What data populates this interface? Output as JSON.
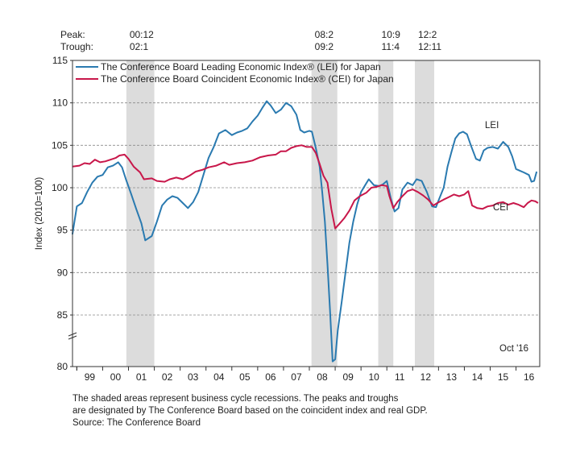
{
  "header": {
    "peak_label": "Peak:",
    "trough_label": "Trough:",
    "cycles": [
      {
        "peak": "00:12",
        "trough": "02:1",
        "start": 2000.917,
        "end": 2002.0
      },
      {
        "peak": "08:2",
        "trough": "09:2",
        "start": 2008.083,
        "end": 2009.083
      },
      {
        "peak": "10:9",
        "trough": "11:4",
        "start": 2010.667,
        "end": 2011.25
      },
      {
        "peak": "12:2",
        "trough": "12:11",
        "start": 2012.083,
        "end": 2012.833
      }
    ]
  },
  "chart_data": {
    "type": "line",
    "ylabel": "Index (2010=100)",
    "ylim": [
      80,
      115
    ],
    "y_ticks": [
      80,
      85,
      90,
      95,
      100,
      105,
      110,
      115
    ],
    "xlim": [
      1998.833,
      2016.917
    ],
    "x_tick_labels": [
      "99",
      "00",
      "01",
      "02",
      "03",
      "04",
      "05",
      "06",
      "07",
      "08",
      "09",
      "10",
      "11",
      "12",
      "13",
      "14",
      "15",
      "16"
    ],
    "x_tick_years": [
      1999,
      2000,
      2001,
      2002,
      2003,
      2004,
      2005,
      2006,
      2007,
      2008,
      2009,
      2010,
      2011,
      2012,
      2013,
      2014,
      2015,
      2016
    ],
    "y_axis_break": true,
    "grid": "horizontal dashed",
    "legend_position": "top-left",
    "annotation": "Oct '16",
    "series": [
      {
        "name": "The Conference Board Leading Economic Index® (LEI) for Japan",
        "short_label": "LEI",
        "color": "#2a7ab0",
        "points": [
          [
            1998.83,
            94.5
          ],
          [
            1999.0,
            97.8
          ],
          [
            1999.2,
            98.2
          ],
          [
            1999.4,
            99.5
          ],
          [
            1999.6,
            100.6
          ],
          [
            1999.8,
            101.3
          ],
          [
            2000.0,
            101.5
          ],
          [
            2000.2,
            102.4
          ],
          [
            2000.4,
            102.6
          ],
          [
            2000.6,
            103.0
          ],
          [
            2000.75,
            102.4
          ],
          [
            2000.9,
            101.0
          ],
          [
            2001.1,
            99.3
          ],
          [
            2001.3,
            97.5
          ],
          [
            2001.5,
            95.8
          ],
          [
            2001.65,
            93.8
          ],
          [
            2001.9,
            94.3
          ],
          [
            2002.1,
            96.0
          ],
          [
            2002.3,
            97.9
          ],
          [
            2002.5,
            98.6
          ],
          [
            2002.7,
            99.0
          ],
          [
            2002.9,
            98.8
          ],
          [
            2003.1,
            98.2
          ],
          [
            2003.3,
            97.6
          ],
          [
            2003.5,
            98.3
          ],
          [
            2003.7,
            99.5
          ],
          [
            2003.9,
            101.5
          ],
          [
            2004.1,
            103.5
          ],
          [
            2004.3,
            104.8
          ],
          [
            2004.5,
            106.4
          ],
          [
            2004.75,
            106.8
          ],
          [
            2005.0,
            106.2
          ],
          [
            2005.2,
            106.5
          ],
          [
            2005.4,
            106.7
          ],
          [
            2005.6,
            107.0
          ],
          [
            2005.8,
            107.8
          ],
          [
            2006.0,
            108.5
          ],
          [
            2006.2,
            109.5
          ],
          [
            2006.35,
            110.2
          ],
          [
            2006.5,
            109.7
          ],
          [
            2006.7,
            108.8
          ],
          [
            2006.9,
            109.2
          ],
          [
            2007.1,
            110.0
          ],
          [
            2007.3,
            109.6
          ],
          [
            2007.5,
            108.6
          ],
          [
            2007.65,
            106.8
          ],
          [
            2007.8,
            106.5
          ],
          [
            2008.0,
            106.7
          ],
          [
            2008.1,
            106.6
          ],
          [
            2008.25,
            104.7
          ],
          [
            2008.4,
            102.5
          ],
          [
            2008.5,
            99.5
          ],
          [
            2008.6,
            96.0
          ],
          [
            2008.7,
            91.0
          ],
          [
            2008.8,
            85.5
          ],
          [
            2008.9,
            80.5
          ],
          [
            2009.0,
            80.7
          ],
          [
            2009.1,
            83.5
          ],
          [
            2009.25,
            86.5
          ],
          [
            2009.4,
            90.0
          ],
          [
            2009.55,
            93.5
          ],
          [
            2009.7,
            96.0
          ],
          [
            2009.85,
            98.0
          ],
          [
            2010.0,
            99.5
          ],
          [
            2010.2,
            100.5
          ],
          [
            2010.3,
            101.0
          ],
          [
            2010.5,
            100.3
          ],
          [
            2010.7,
            100.2
          ],
          [
            2010.85,
            100.4
          ],
          [
            2011.0,
            100.8
          ],
          [
            2011.15,
            98.8
          ],
          [
            2011.3,
            97.2
          ],
          [
            2011.45,
            97.6
          ],
          [
            2011.6,
            99.8
          ],
          [
            2011.8,
            100.6
          ],
          [
            2012.0,
            100.3
          ],
          [
            2012.15,
            101.0
          ],
          [
            2012.35,
            100.8
          ],
          [
            2012.55,
            99.5
          ],
          [
            2012.75,
            97.8
          ],
          [
            2012.9,
            97.7
          ],
          [
            2013.0,
            98.5
          ],
          [
            2013.2,
            100.0
          ],
          [
            2013.35,
            102.5
          ],
          [
            2013.5,
            104.2
          ],
          [
            2013.65,
            105.8
          ],
          [
            2013.8,
            106.4
          ],
          [
            2013.95,
            106.6
          ],
          [
            2014.1,
            106.3
          ],
          [
            2014.25,
            105.0
          ],
          [
            2014.45,
            103.4
          ],
          [
            2014.6,
            103.2
          ],
          [
            2014.75,
            104.4
          ],
          [
            2014.9,
            104.7
          ],
          [
            2015.1,
            104.8
          ],
          [
            2015.3,
            104.6
          ],
          [
            2015.5,
            105.4
          ],
          [
            2015.7,
            104.8
          ],
          [
            2015.85,
            103.7
          ],
          [
            2016.0,
            102.2
          ],
          [
            2016.15,
            102.0
          ],
          [
            2016.3,
            101.8
          ],
          [
            2016.5,
            101.5
          ],
          [
            2016.6,
            100.7
          ],
          [
            2016.7,
            100.8
          ],
          [
            2016.8,
            101.9
          ]
        ]
      },
      {
        "name": "The Conference Board Coincident Economic Index® (CEI) for Japan",
        "short_label": "CEI",
        "color": "#c8174a",
        "points": [
          [
            1998.83,
            102.5
          ],
          [
            1999.1,
            102.6
          ],
          [
            1999.3,
            102.9
          ],
          [
            1999.5,
            102.8
          ],
          [
            1999.7,
            103.3
          ],
          [
            1999.9,
            103.0
          ],
          [
            2000.1,
            103.1
          ],
          [
            2000.3,
            103.3
          ],
          [
            2000.5,
            103.5
          ],
          [
            2000.65,
            103.8
          ],
          [
            2000.85,
            103.9
          ],
          [
            2001.0,
            103.4
          ],
          [
            2001.2,
            102.5
          ],
          [
            2001.45,
            101.8
          ],
          [
            2001.6,
            101.0
          ],
          [
            2001.9,
            101.1
          ],
          [
            2002.1,
            100.8
          ],
          [
            2002.4,
            100.7
          ],
          [
            2002.6,
            101.0
          ],
          [
            2002.85,
            101.2
          ],
          [
            2003.1,
            101.0
          ],
          [
            2003.35,
            101.4
          ],
          [
            2003.6,
            101.9
          ],
          [
            2003.85,
            102.1
          ],
          [
            2004.1,
            102.4
          ],
          [
            2004.4,
            102.6
          ],
          [
            2004.7,
            103.0
          ],
          [
            2004.9,
            102.7
          ],
          [
            2005.2,
            102.9
          ],
          [
            2005.5,
            103.0
          ],
          [
            2005.8,
            103.2
          ],
          [
            2006.1,
            103.6
          ],
          [
            2006.4,
            103.8
          ],
          [
            2006.7,
            103.9
          ],
          [
            2006.9,
            104.3
          ],
          [
            2007.1,
            104.3
          ],
          [
            2007.3,
            104.7
          ],
          [
            2007.5,
            104.9
          ],
          [
            2007.7,
            105.0
          ],
          [
            2007.9,
            104.8
          ],
          [
            2008.1,
            104.8
          ],
          [
            2008.25,
            104.1
          ],
          [
            2008.4,
            102.8
          ],
          [
            2008.55,
            101.4
          ],
          [
            2008.7,
            100.6
          ],
          [
            2008.85,
            97.5
          ],
          [
            2009.0,
            95.2
          ],
          [
            2009.15,
            95.7
          ],
          [
            2009.35,
            96.4
          ],
          [
            2009.55,
            97.3
          ],
          [
            2009.75,
            98.5
          ],
          [
            2009.95,
            99.0
          ],
          [
            2010.2,
            99.4
          ],
          [
            2010.4,
            100.0
          ],
          [
            2010.6,
            100.1
          ],
          [
            2010.8,
            100.3
          ],
          [
            2011.0,
            100.2
          ],
          [
            2011.1,
            99.0
          ],
          [
            2011.25,
            97.6
          ],
          [
            2011.4,
            98.3
          ],
          [
            2011.6,
            99.0
          ],
          [
            2011.8,
            99.6
          ],
          [
            2012.0,
            99.8
          ],
          [
            2012.2,
            99.5
          ],
          [
            2012.4,
            99.1
          ],
          [
            2012.6,
            98.6
          ],
          [
            2012.8,
            97.9
          ],
          [
            2012.95,
            98.2
          ],
          [
            2013.2,
            98.6
          ],
          [
            2013.4,
            98.9
          ],
          [
            2013.6,
            99.2
          ],
          [
            2013.8,
            99.0
          ],
          [
            2014.0,
            99.2
          ],
          [
            2014.15,
            99.6
          ],
          [
            2014.3,
            97.9
          ],
          [
            2014.5,
            97.6
          ],
          [
            2014.7,
            97.5
          ],
          [
            2014.9,
            97.8
          ],
          [
            2015.1,
            97.9
          ],
          [
            2015.3,
            98.2
          ],
          [
            2015.5,
            98.3
          ],
          [
            2015.7,
            98.0
          ],
          [
            2015.9,
            98.2
          ],
          [
            2016.1,
            98.0
          ],
          [
            2016.3,
            97.7
          ],
          [
            2016.45,
            98.2
          ],
          [
            2016.6,
            98.5
          ],
          [
            2016.75,
            98.4
          ],
          [
            2016.85,
            98.2
          ]
        ]
      }
    ]
  },
  "footnote": {
    "line1": "The shaded areas represent business cycle recessions. The peaks and troughs",
    "line2": "are designated by The Conference Board based on the coincident index and real GDP.",
    "line3": "Source: The Conference Board"
  }
}
